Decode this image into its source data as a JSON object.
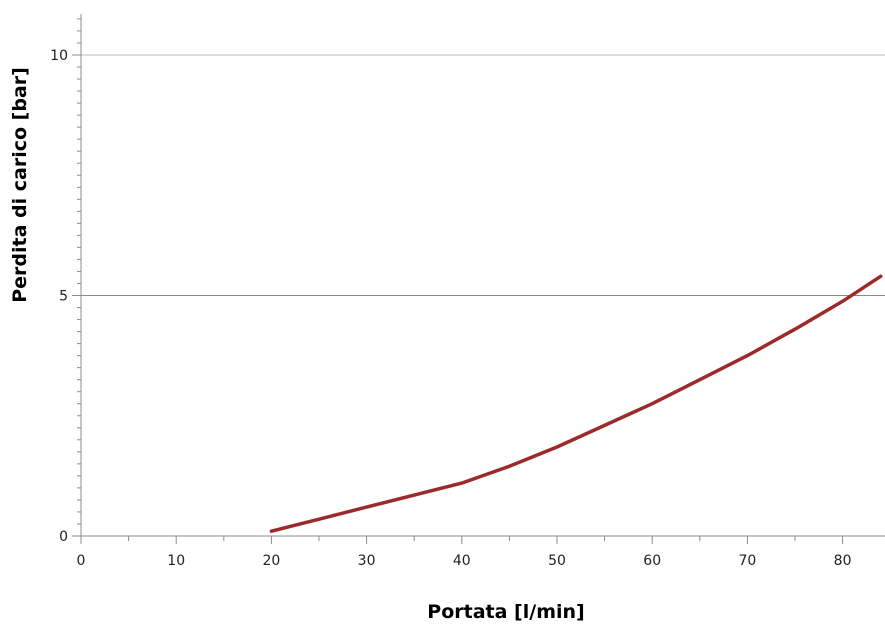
{
  "chart_data": {
    "type": "line",
    "title": "",
    "xlabel": "Portata [l/min]",
    "ylabel": "Perdita di carico [bar]",
    "xlim": [
      0,
      84
    ],
    "ylim": [
      0,
      10
    ],
    "x_ticks": [
      0,
      10,
      20,
      30,
      40,
      50,
      60,
      70,
      80
    ],
    "y_ticks": [
      0,
      5,
      10
    ],
    "grid": "horizontal major",
    "legend": "none",
    "series": [
      {
        "color": "#9b2a2a",
        "x": [
          20,
          25,
          30,
          35,
          40,
          45,
          50,
          55,
          60,
          65,
          70,
          75,
          80,
          84
        ],
        "y": [
          0.1,
          0.35,
          0.6,
          0.85,
          1.1,
          1.45,
          1.85,
          2.3,
          2.75,
          3.25,
          3.75,
          4.3,
          4.88,
          5.4
        ]
      }
    ]
  }
}
